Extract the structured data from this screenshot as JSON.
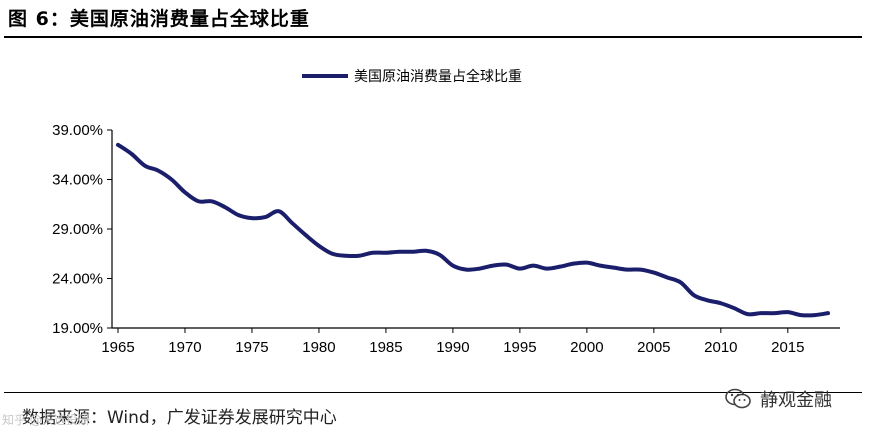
{
  "figure": {
    "title": "图 6：美国原油消费量占全球比重",
    "source": "数据来源：Wind，广发证券发展研究中心"
  },
  "watermark": {
    "text": "静观金融",
    "icon": "wechat-icon"
  },
  "corner_tag": "知乎 @天选投研",
  "colors": {
    "series": "#1b1f6b",
    "axis": "#000000"
  },
  "chart_data": {
    "type": "line",
    "title": "",
    "xlabel": "",
    "ylabel": "",
    "legend": {
      "position": "top-center"
    },
    "grid": false,
    "xlim": [
      1965,
      2018
    ],
    "ylim": [
      19,
      39
    ],
    "x_ticks": [
      1965,
      1970,
      1975,
      1980,
      1985,
      1990,
      1995,
      2000,
      2005,
      2010,
      2015
    ],
    "y_ticks": [
      19,
      24,
      29,
      34,
      39
    ],
    "y_tick_labels": [
      "19.00%",
      "24.00%",
      "29.00%",
      "34.00%",
      "39.00%"
    ],
    "x_tick_labels": [
      "1965",
      "1970",
      "1975",
      "1980",
      "1985",
      "1990",
      "1995",
      "2000",
      "2005",
      "2010",
      "2015"
    ],
    "series": [
      {
        "name": "美国原油消费量占全球比重",
        "x": [
          1965,
          1966,
          1967,
          1968,
          1969,
          1970,
          1971,
          1972,
          1973,
          1974,
          1975,
          1976,
          1977,
          1978,
          1979,
          1980,
          1981,
          1982,
          1983,
          1984,
          1985,
          1986,
          1987,
          1988,
          1989,
          1990,
          1991,
          1992,
          1993,
          1994,
          1995,
          1996,
          1997,
          1998,
          1999,
          2000,
          2001,
          2002,
          2003,
          2004,
          2005,
          2006,
          2007,
          2008,
          2009,
          2010,
          2011,
          2012,
          2013,
          2014,
          2015,
          2016,
          2017,
          2018
        ],
        "values": [
          37.5,
          36.6,
          35.4,
          34.9,
          34.0,
          32.7,
          31.8,
          31.8,
          31.2,
          30.4,
          30.1,
          30.2,
          30.8,
          29.6,
          28.4,
          27.3,
          26.5,
          26.3,
          26.3,
          26.6,
          26.6,
          26.7,
          26.7,
          26.8,
          26.4,
          25.3,
          24.9,
          25.0,
          25.3,
          25.4,
          25.0,
          25.3,
          25.0,
          25.2,
          25.5,
          25.6,
          25.3,
          25.1,
          24.9,
          24.9,
          24.6,
          24.1,
          23.6,
          22.3,
          21.8,
          21.5,
          21.0,
          20.4,
          20.5,
          20.5,
          20.6,
          20.3,
          20.3,
          20.5
        ]
      }
    ]
  }
}
